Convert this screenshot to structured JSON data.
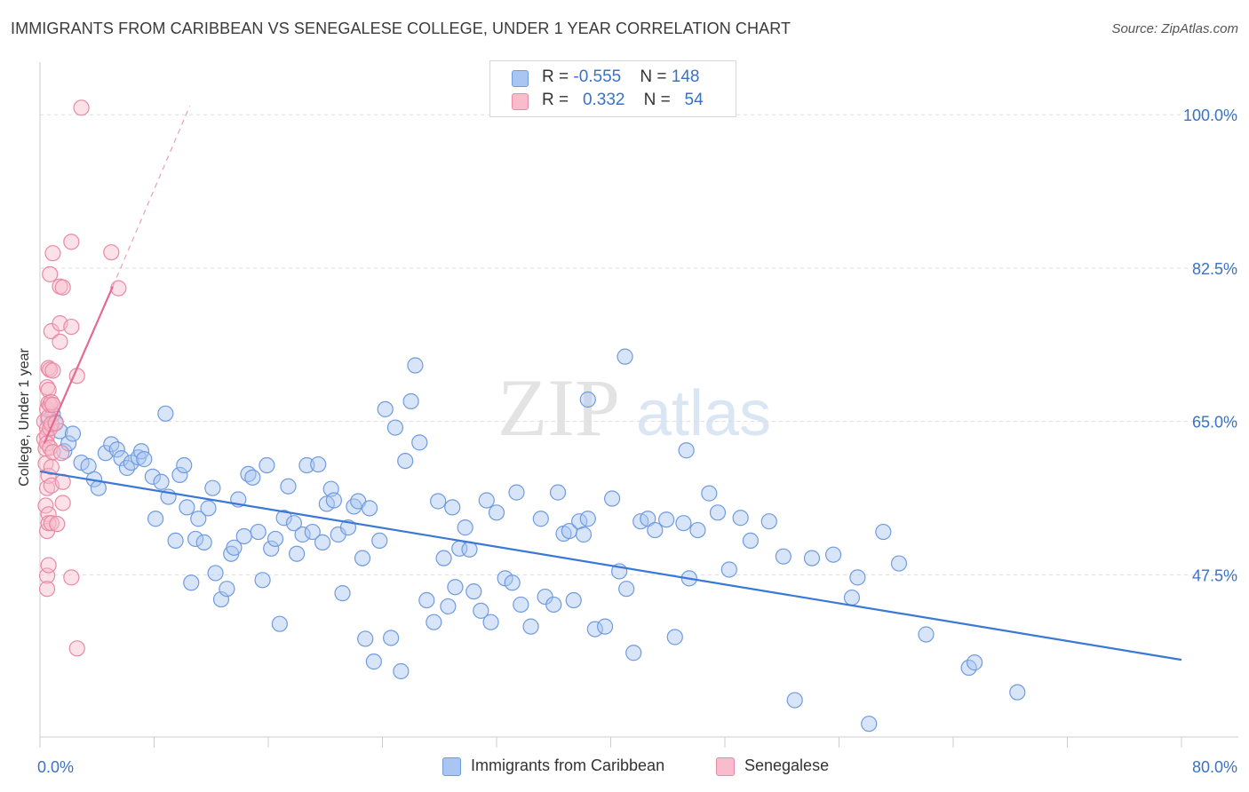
{
  "title": "IMMIGRANTS FROM CARIBBEAN VS SENEGALESE COLLEGE, UNDER 1 YEAR CORRELATION CHART",
  "source": "Source: ZipAtlas.com",
  "watermark": {
    "zip": "ZIP",
    "atlas": "atlas"
  },
  "legend": {
    "rows": [
      {
        "r_label": "R = ",
        "r_value": "-0.555",
        "n_label": "N = ",
        "n_value": "148",
        "color": "#a9c6f2",
        "border": "#6f9be0"
      },
      {
        "r_label": "R = ",
        "r_value": "0.332",
        "n_label": "N = ",
        "n_value": "54",
        "color": "#f8bccd",
        "border": "#e88aa5"
      }
    ]
  },
  "chart_data": {
    "type": "scatter",
    "title": "IMMIGRANTS FROM CARIBBEAN VS SENEGALESE COLLEGE, UNDER 1 YEAR CORRELATION CHART",
    "xlabel": "",
    "ylabel": "College, Under 1 year",
    "xlim": [
      0,
      80
    ],
    "ylim": [
      29,
      106
    ],
    "x_tick_labels": [
      "0.0%",
      "80.0%"
    ],
    "y_ticks": [
      47.5,
      65.0,
      82.5,
      100.0
    ],
    "y_tick_labels": [
      "47.5%",
      "65.0%",
      "82.5%",
      "100.0%"
    ],
    "grid": true,
    "legend_position": "top-center",
    "series": [
      {
        "name": "Immigrants from Caribbean",
        "color": "#6f9be0",
        "fill": "#a9c6f2",
        "trend": {
          "x": [
            0,
            80
          ],
          "y": [
            59.3,
            37.8
          ]
        },
        "points": [
          [
            0.6,
            65.2
          ],
          [
            0.9,
            65.8
          ],
          [
            1.1,
            64.9
          ],
          [
            1.4,
            63.9
          ],
          [
            1.7,
            61.6
          ],
          [
            2.0,
            62.5
          ],
          [
            2.3,
            63.6
          ],
          [
            2.9,
            60.3
          ],
          [
            3.4,
            59.9
          ],
          [
            3.8,
            58.4
          ],
          [
            4.1,
            57.4
          ],
          [
            4.6,
            61.4
          ],
          [
            5.0,
            62.4
          ],
          [
            5.4,
            61.8
          ],
          [
            5.7,
            60.8
          ],
          [
            6.1,
            59.7
          ],
          [
            6.4,
            60.3
          ],
          [
            6.9,
            60.9
          ],
          [
            7.1,
            61.6
          ],
          [
            7.3,
            60.7
          ],
          [
            7.9,
            58.7
          ],
          [
            8.1,
            53.9
          ],
          [
            8.5,
            58.1
          ],
          [
            8.8,
            65.9
          ],
          [
            9.0,
            56.4
          ],
          [
            9.5,
            51.4
          ],
          [
            9.8,
            58.9
          ],
          [
            10.1,
            60.0
          ],
          [
            10.3,
            55.2
          ],
          [
            10.6,
            46.6
          ],
          [
            10.9,
            51.6
          ],
          [
            11.1,
            53.9
          ],
          [
            11.5,
            51.2
          ],
          [
            11.8,
            55.1
          ],
          [
            12.1,
            57.4
          ],
          [
            12.3,
            47.7
          ],
          [
            12.7,
            44.7
          ],
          [
            13.1,
            45.9
          ],
          [
            13.4,
            49.9
          ],
          [
            13.6,
            50.6
          ],
          [
            13.9,
            56.1
          ],
          [
            14.3,
            51.9
          ],
          [
            14.6,
            59.0
          ],
          [
            14.9,
            58.6
          ],
          [
            15.3,
            52.4
          ],
          [
            15.6,
            46.9
          ],
          [
            15.9,
            60.0
          ],
          [
            16.2,
            50.5
          ],
          [
            16.5,
            51.6
          ],
          [
            16.8,
            41.9
          ],
          [
            17.1,
            54.0
          ],
          [
            17.4,
            57.6
          ],
          [
            17.8,
            53.4
          ],
          [
            18.0,
            49.9
          ],
          [
            18.4,
            52.1
          ],
          [
            18.7,
            60.0
          ],
          [
            19.1,
            52.4
          ],
          [
            19.5,
            60.1
          ],
          [
            19.8,
            51.2
          ],
          [
            20.1,
            55.6
          ],
          [
            20.4,
            57.3
          ],
          [
            20.6,
            56.0
          ],
          [
            20.9,
            52.1
          ],
          [
            21.2,
            45.4
          ],
          [
            21.6,
            52.9
          ],
          [
            22.0,
            55.3
          ],
          [
            22.3,
            55.9
          ],
          [
            22.6,
            49.4
          ],
          [
            22.8,
            40.2
          ],
          [
            23.1,
            55.1
          ],
          [
            23.4,
            37.6
          ],
          [
            23.8,
            51.4
          ],
          [
            24.2,
            66.4
          ],
          [
            24.6,
            40.3
          ],
          [
            24.9,
            64.3
          ],
          [
            25.3,
            36.5
          ],
          [
            25.6,
            60.5
          ],
          [
            26.0,
            67.3
          ],
          [
            26.3,
            71.4
          ],
          [
            26.6,
            62.6
          ],
          [
            27.1,
            44.6
          ],
          [
            27.6,
            42.1
          ],
          [
            27.9,
            55.9
          ],
          [
            28.3,
            49.4
          ],
          [
            28.6,
            43.9
          ],
          [
            28.9,
            55.2
          ],
          [
            29.1,
            46.1
          ],
          [
            29.4,
            50.5
          ],
          [
            29.8,
            52.9
          ],
          [
            30.1,
            50.4
          ],
          [
            30.4,
            45.6
          ],
          [
            30.9,
            43.4
          ],
          [
            31.3,
            56.0
          ],
          [
            31.6,
            42.1
          ],
          [
            32.0,
            54.6
          ],
          [
            32.6,
            47.1
          ],
          [
            33.1,
            46.6
          ],
          [
            33.4,
            56.9
          ],
          [
            33.7,
            44.1
          ],
          [
            34.4,
            41.6
          ],
          [
            35.1,
            53.9
          ],
          [
            35.4,
            45.0
          ],
          [
            36.0,
            44.1
          ],
          [
            36.3,
            56.9
          ],
          [
            36.7,
            52.2
          ],
          [
            37.1,
            52.5
          ],
          [
            37.4,
            44.6
          ],
          [
            37.8,
            53.6
          ],
          [
            38.1,
            52.1
          ],
          [
            38.4,
            53.9
          ],
          [
            38.9,
            41.3
          ],
          [
            39.6,
            41.6
          ],
          [
            40.1,
            56.2
          ],
          [
            40.6,
            47.9
          ],
          [
            41.1,
            45.9
          ],
          [
            41.6,
            38.6
          ],
          [
            42.1,
            53.6
          ],
          [
            42.6,
            53.9
          ],
          [
            43.1,
            52.6
          ],
          [
            43.9,
            53.8
          ],
          [
            44.5,
            40.4
          ],
          [
            45.1,
            53.4
          ],
          [
            45.5,
            47.1
          ],
          [
            46.1,
            52.6
          ],
          [
            46.9,
            56.8
          ],
          [
            47.5,
            54.6
          ],
          [
            48.3,
            48.1
          ],
          [
            49.1,
            54.0
          ],
          [
            49.8,
            51.4
          ],
          [
            51.1,
            53.6
          ],
          [
            52.1,
            49.6
          ],
          [
            52.9,
            33.2
          ],
          [
            54.1,
            49.4
          ],
          [
            55.6,
            49.8
          ],
          [
            56.9,
            44.9
          ],
          [
            58.1,
            30.5
          ],
          [
            59.1,
            52.4
          ],
          [
            62.1,
            40.7
          ],
          [
            65.1,
            36.9
          ],
          [
            65.5,
            37.5
          ],
          [
            68.5,
            34.1
          ],
          [
            57.3,
            47.2
          ],
          [
            60.2,
            48.8
          ],
          [
            45.3,
            61.7
          ],
          [
            38.4,
            67.5
          ],
          [
            41.0,
            72.4
          ]
        ]
      },
      {
        "name": "Senegalese",
        "color": "#e88aa5",
        "fill": "#f8bccd",
        "trend": {
          "x": [
            0.3,
            5.1
          ],
          "y": [
            62.5,
            80.4
          ]
        },
        "trend_dashed": {
          "x": [
            5.1,
            10.5
          ],
          "y": [
            80.4,
            101.0
          ]
        },
        "points": [
          [
            0.3,
            63.0
          ],
          [
            0.3,
            65.0
          ],
          [
            0.4,
            61.9
          ],
          [
            0.4,
            60.2
          ],
          [
            0.4,
            55.4
          ],
          [
            0.5,
            68.9
          ],
          [
            0.5,
            66.4
          ],
          [
            0.5,
            64.2
          ],
          [
            0.5,
            63.4
          ],
          [
            0.5,
            62.5
          ],
          [
            0.5,
            57.4
          ],
          [
            0.5,
            52.5
          ],
          [
            0.5,
            47.4
          ],
          [
            0.5,
            45.9
          ],
          [
            0.6,
            71.1
          ],
          [
            0.6,
            68.6
          ],
          [
            0.6,
            67.1
          ],
          [
            0.6,
            65.5
          ],
          [
            0.6,
            58.8
          ],
          [
            0.6,
            54.4
          ],
          [
            0.6,
            53.4
          ],
          [
            0.6,
            48.6
          ],
          [
            0.7,
            81.8
          ],
          [
            0.7,
            70.9
          ],
          [
            0.7,
            66.9
          ],
          [
            0.7,
            64.2
          ],
          [
            0.7,
            62.0
          ],
          [
            0.8,
            75.3
          ],
          [
            0.8,
            67.2
          ],
          [
            0.8,
            64.7
          ],
          [
            0.8,
            59.8
          ],
          [
            0.8,
            57.7
          ],
          [
            0.8,
            53.4
          ],
          [
            0.9,
            84.2
          ],
          [
            0.9,
            70.8
          ],
          [
            0.9,
            66.9
          ],
          [
            0.9,
            61.5
          ],
          [
            1.1,
            64.8
          ],
          [
            1.2,
            53.3
          ],
          [
            1.4,
            80.4
          ],
          [
            1.4,
            76.2
          ],
          [
            1.4,
            74.1
          ],
          [
            1.5,
            61.4
          ],
          [
            1.6,
            80.3
          ],
          [
            1.6,
            58.1
          ],
          [
            1.6,
            55.7
          ],
          [
            2.2,
            85.5
          ],
          [
            2.2,
            75.8
          ],
          [
            2.2,
            47.2
          ],
          [
            2.6,
            70.2
          ],
          [
            2.6,
            39.1
          ],
          [
            2.9,
            100.8
          ],
          [
            5.0,
            84.3
          ],
          [
            5.5,
            80.2
          ]
        ]
      }
    ]
  },
  "bottom_legend": [
    {
      "label": "Immigrants from Caribbean",
      "color": "#a9c6f2",
      "border": "#6f9be0"
    },
    {
      "label": "Senegalese",
      "color": "#f8bccd",
      "border": "#e88aa5"
    }
  ]
}
